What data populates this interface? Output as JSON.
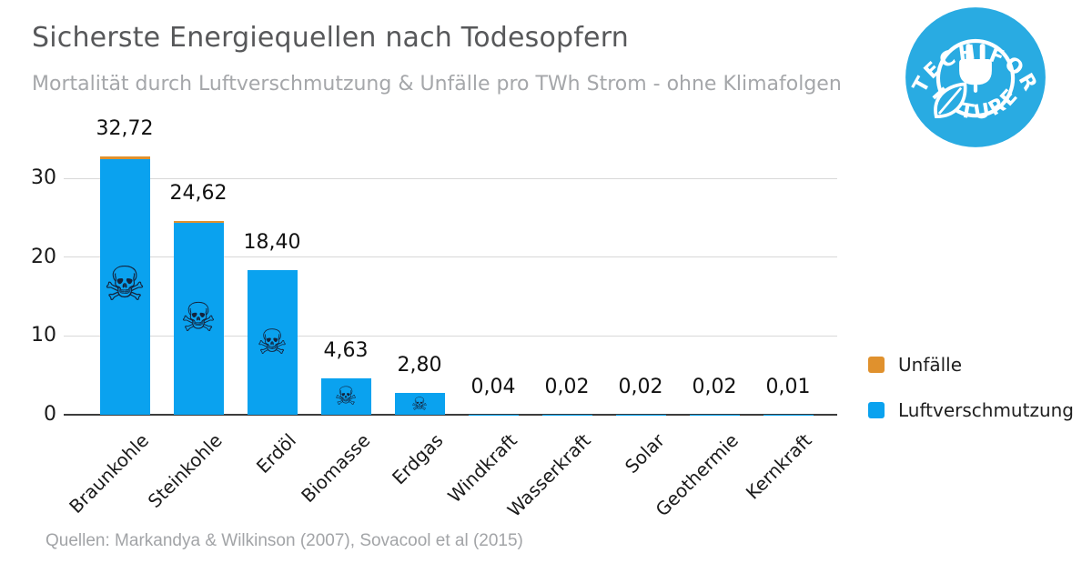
{
  "header": {
    "title": "Sicherste Energiequellen nach Todesopfern",
    "subtitle": "Mortalität durch Luftverschmutzung & Unfälle pro TWh Strom - ohne Klimafolgen"
  },
  "logo": {
    "arc_top": "TECH FOR",
    "arc_bottom": "FUTURE",
    "color": "#29ABE2",
    "icon": "plug-and-leaf-icon"
  },
  "chart_data": {
    "type": "bar",
    "stacked": true,
    "title": "Sicherste Energiequellen nach Todesopfern",
    "subtitle": "Mortalität durch Luftverschmutzung & Unfälle pro TWh Strom - ohne Klimafolgen",
    "categories": [
      "Braunkohle",
      "Steinkohle",
      "Erdöl",
      "Biomasse",
      "Erdgas",
      "Windkraft",
      "Wasserkraft",
      "Solar",
      "Geothermie",
      "Kernkraft"
    ],
    "totals": [
      32.72,
      24.62,
      18.4,
      4.63,
      2.8,
      0.04,
      0.02,
      0.02,
      0.02,
      0.01
    ],
    "total_labels": [
      "32,72",
      "24,62",
      "18,40",
      "4,63",
      "2,80",
      "0,04",
      "0,02",
      "0,02",
      "0,02",
      "0,01"
    ],
    "series": [
      {
        "name": "Unfälle",
        "color": "#E0912D",
        "values": [
          0.3,
          0.25,
          0,
          0,
          0,
          0,
          0,
          0,
          0,
          0
        ]
      },
      {
        "name": "Luftverschmutzung",
        "color": "#0AA2EF",
        "values": [
          32.42,
          24.37,
          18.4,
          4.63,
          2.8,
          0.04,
          0.02,
          0.02,
          0.02,
          0.01
        ]
      }
    ],
    "yticks": [
      0,
      10,
      20,
      30
    ],
    "ylim": [
      0,
      34
    ],
    "grid": true,
    "legend_position": "right",
    "decimal_style": "comma",
    "skull_icon": "skull-and-crossbones-icon",
    "skull_glyph": "☠",
    "skull_color": "#14233c",
    "skull_icon_sizes": [
      52,
      44,
      38,
      28,
      20,
      0,
      0,
      0,
      0,
      0
    ]
  },
  "footer": {
    "source": "Quellen: Markandya & Wilkinson (2007), Sovacool et al (2015)"
  }
}
